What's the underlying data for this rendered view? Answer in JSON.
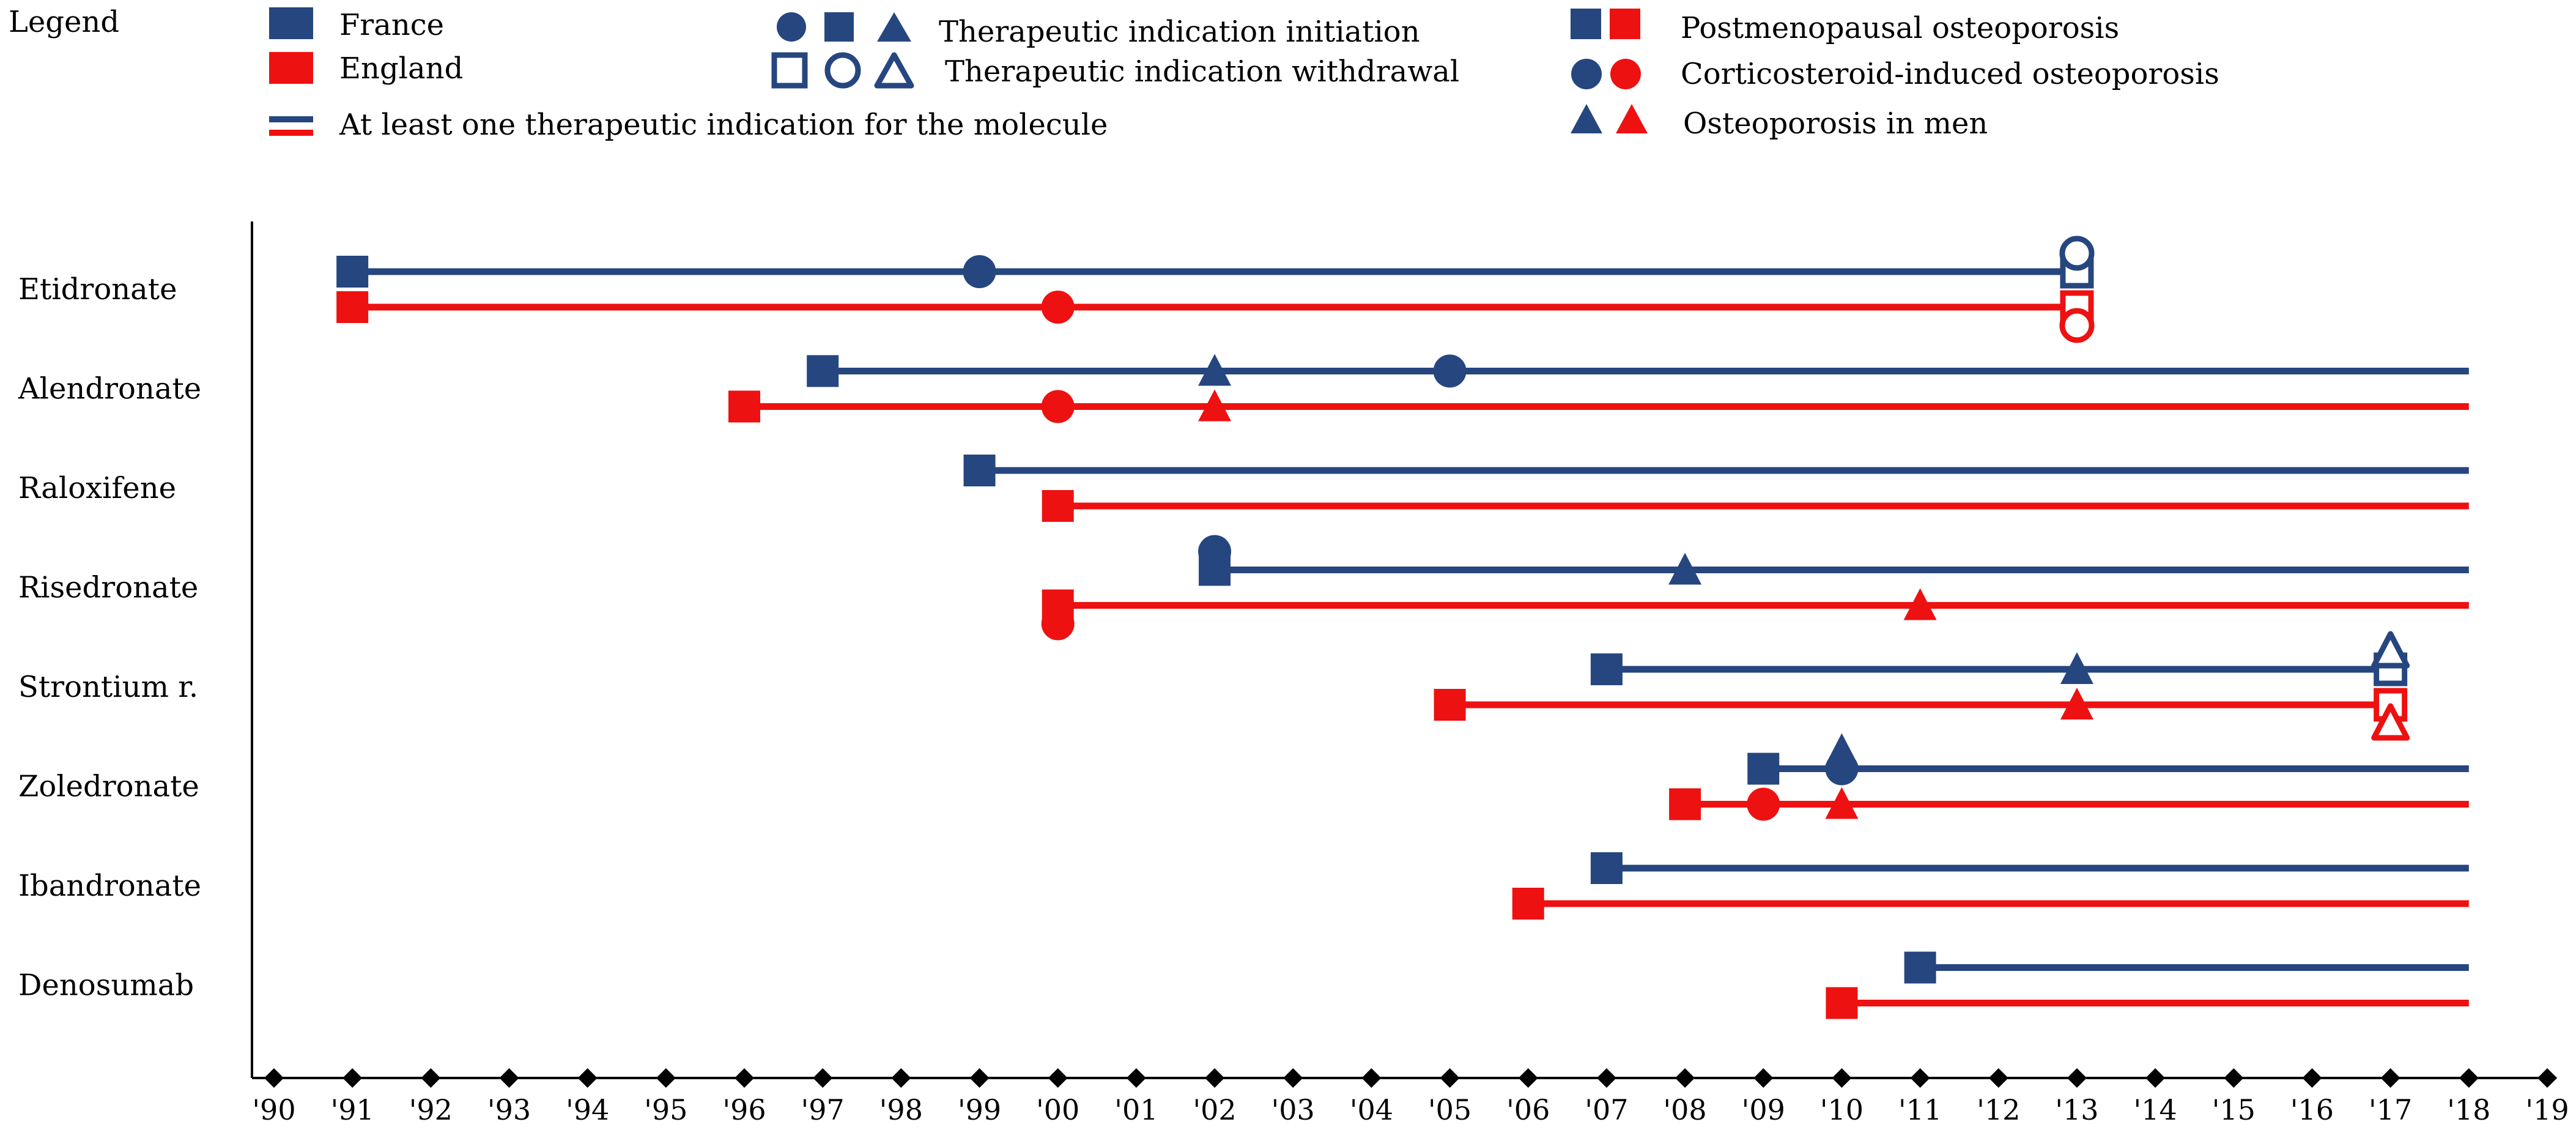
{
  "chart_data": {
    "type": "timeline",
    "title": "",
    "colors": {
      "france": "#26467f",
      "england": "#ee1111",
      "axis": "#000000"
    },
    "legend": {
      "title": "Legend",
      "france": "France",
      "england": "England",
      "line_desc": "At least one therapeutic indication for the molecule",
      "initiation": "Therapeutic indication initiation",
      "withdrawal": "Therapeutic indication withdrawal",
      "pmo": "Postmenopausal osteoporosis",
      "gio": "Corticosteroid-induced osteoporosis",
      "men": "Osteoporosis in men"
    },
    "x_ticks": [
      "'90",
      "'91",
      "'92",
      "'93",
      "'94",
      "'95",
      "'96",
      "'97",
      "'98",
      "'99",
      "'00",
      "'01",
      "'02",
      "'03",
      "'04",
      "'05",
      "'06",
      "'07",
      "'08",
      "'09",
      "'10",
      "'11",
      "'12",
      "'13",
      "'14",
      "'15",
      "'16",
      "'17",
      "'18",
      "'19"
    ],
    "x_range": [
      1990,
      2019
    ],
    "drugs": [
      {
        "name": "Etidronate",
        "france": {
          "start": 1991,
          "end": 2013,
          "events": [
            {
              "year": 1991,
              "ind": "pmo",
              "type": "init"
            },
            {
              "year": 1999,
              "ind": "gio",
              "type": "init"
            },
            {
              "year": 2013,
              "ind": "pmo",
              "type": "withdraw"
            },
            {
              "year": 2013,
              "ind": "gio",
              "type": "withdraw"
            }
          ]
        },
        "england": {
          "start": 1991,
          "end": 2013,
          "events": [
            {
              "year": 1991,
              "ind": "pmo",
              "type": "init"
            },
            {
              "year": 2000,
              "ind": "gio",
              "type": "init"
            },
            {
              "year": 2013,
              "ind": "pmo",
              "type": "withdraw"
            },
            {
              "year": 2013,
              "ind": "gio",
              "type": "withdraw"
            }
          ]
        }
      },
      {
        "name": "Alendronate",
        "france": {
          "start": 1997,
          "end": 2018,
          "events": [
            {
              "year": 1997,
              "ind": "pmo",
              "type": "init"
            },
            {
              "year": 2002,
              "ind": "men",
              "type": "init"
            },
            {
              "year": 2005,
              "ind": "gio",
              "type": "init"
            }
          ]
        },
        "england": {
          "start": 1996,
          "end": 2018,
          "events": [
            {
              "year": 1996,
              "ind": "pmo",
              "type": "init"
            },
            {
              "year": 2000,
              "ind": "gio",
              "type": "init"
            },
            {
              "year": 2002,
              "ind": "men",
              "type": "init"
            }
          ]
        }
      },
      {
        "name": "Raloxifene",
        "france": {
          "start": 1999,
          "end": 2018,
          "events": [
            {
              "year": 1999,
              "ind": "pmo",
              "type": "init"
            }
          ]
        },
        "england": {
          "start": 2000,
          "end": 2018,
          "events": [
            {
              "year": 2000,
              "ind": "pmo",
              "type": "init"
            }
          ]
        }
      },
      {
        "name": "Risedronate",
        "france": {
          "start": 2002,
          "end": 2018,
          "events": [
            {
              "year": 2002,
              "ind": "pmo",
              "type": "init"
            },
            {
              "year": 2002,
              "ind": "gio",
              "type": "init"
            },
            {
              "year": 2008,
              "ind": "men",
              "type": "init"
            }
          ]
        },
        "england": {
          "start": 2000,
          "end": 2018,
          "events": [
            {
              "year": 2000,
              "ind": "pmo",
              "type": "init"
            },
            {
              "year": 2000,
              "ind": "gio",
              "type": "init"
            },
            {
              "year": 2011,
              "ind": "men",
              "type": "init"
            }
          ]
        }
      },
      {
        "name": "Strontium r.",
        "france": {
          "start": 2007,
          "end": 2017,
          "events": [
            {
              "year": 2007,
              "ind": "pmo",
              "type": "init"
            },
            {
              "year": 2013,
              "ind": "men",
              "type": "init"
            },
            {
              "year": 2017,
              "ind": "pmo",
              "type": "withdraw"
            },
            {
              "year": 2017,
              "ind": "men",
              "type": "withdraw"
            }
          ]
        },
        "england": {
          "start": 2005,
          "end": 2017,
          "events": [
            {
              "year": 2005,
              "ind": "pmo",
              "type": "init"
            },
            {
              "year": 2013,
              "ind": "men",
              "type": "init"
            },
            {
              "year": 2017,
              "ind": "pmo",
              "type": "withdraw"
            },
            {
              "year": 2017,
              "ind": "men",
              "type": "withdraw"
            }
          ]
        }
      },
      {
        "name": "Zoledronate",
        "france": {
          "start": 2009,
          "end": 2018,
          "events": [
            {
              "year": 2009,
              "ind": "pmo",
              "type": "init"
            },
            {
              "year": 2010,
              "ind": "gio",
              "type": "init"
            },
            {
              "year": 2010,
              "ind": "men",
              "type": "init"
            }
          ]
        },
        "england": {
          "start": 2008,
          "end": 2018,
          "events": [
            {
              "year": 2008,
              "ind": "pmo",
              "type": "init"
            },
            {
              "year": 2009,
              "ind": "gio",
              "type": "init"
            },
            {
              "year": 2010,
              "ind": "men",
              "type": "init"
            }
          ]
        }
      },
      {
        "name": "Ibandronate",
        "france": {
          "start": 2007,
          "end": 2018,
          "events": [
            {
              "year": 2007,
              "ind": "pmo",
              "type": "init"
            }
          ]
        },
        "england": {
          "start": 2006,
          "end": 2018,
          "events": [
            {
              "year": 2006,
              "ind": "pmo",
              "type": "init"
            }
          ]
        }
      },
      {
        "name": "Denosumab",
        "france": {
          "start": 2011,
          "end": 2018,
          "events": [
            {
              "year": 2011,
              "ind": "pmo",
              "type": "init"
            }
          ]
        },
        "england": {
          "start": 2010,
          "end": 2018,
          "events": [
            {
              "year": 2010,
              "ind": "pmo",
              "type": "init"
            }
          ]
        }
      }
    ]
  }
}
